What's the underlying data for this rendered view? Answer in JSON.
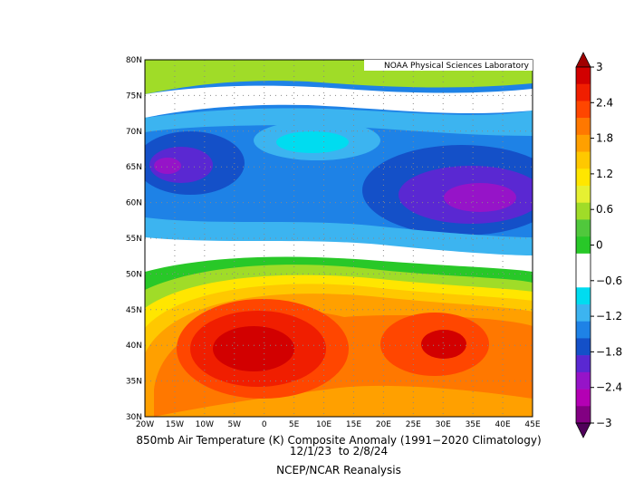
{
  "map": {
    "credit": "NOAA Physical Sciences Laboratory",
    "title": "850mb Air Temperature (K) Composite Anomaly (1991−2020 Climatology)",
    "dates": "12/1/23  to 2/8/24",
    "source": "NCEP/NCAR Reanalysis",
    "lon_labels": [
      "20W",
      "15W",
      "10W",
      "5W",
      "0",
      "5E",
      "10E",
      "15E",
      "20E",
      "25E",
      "30E",
      "35E",
      "40E",
      "45E"
    ],
    "lat_labels": [
      "30N",
      "35N",
      "40N",
      "45N",
      "50N",
      "55N",
      "60N",
      "65N",
      "70N",
      "75N",
      "80N"
    ],
    "colorbar": {
      "lim": [
        -3,
        3
      ],
      "ticks": [
        3,
        2.4,
        1.8,
        1.2,
        0.6,
        0,
        {
          "value": -0.6,
          "label": "−0.6"
        },
        {
          "value": -1.2,
          "label": "−1.2"
        },
        {
          "value": -1.8,
          "label": "−1.8"
        },
        {
          "value": -2.4,
          "label": "−2.4"
        },
        {
          "value": -3,
          "label": "−3"
        }
      ],
      "colors": [
        "#a00000",
        "#d20000",
        "#f01e00",
        "#ff4600",
        "#ff7800",
        "#ffa000",
        "#ffc800",
        "#ffe600",
        "#e6f032",
        "#a0dc28",
        "#50c83c",
        "#28c828",
        "#ffffff",
        "#ffffff",
        "#00dcf0",
        "#3cb4f0",
        "#1e82e6",
        "#1450c8",
        "#5a28d2",
        "#9614c8",
        "#b400b4",
        "#820082",
        "#50005a"
      ]
    }
  }
}
